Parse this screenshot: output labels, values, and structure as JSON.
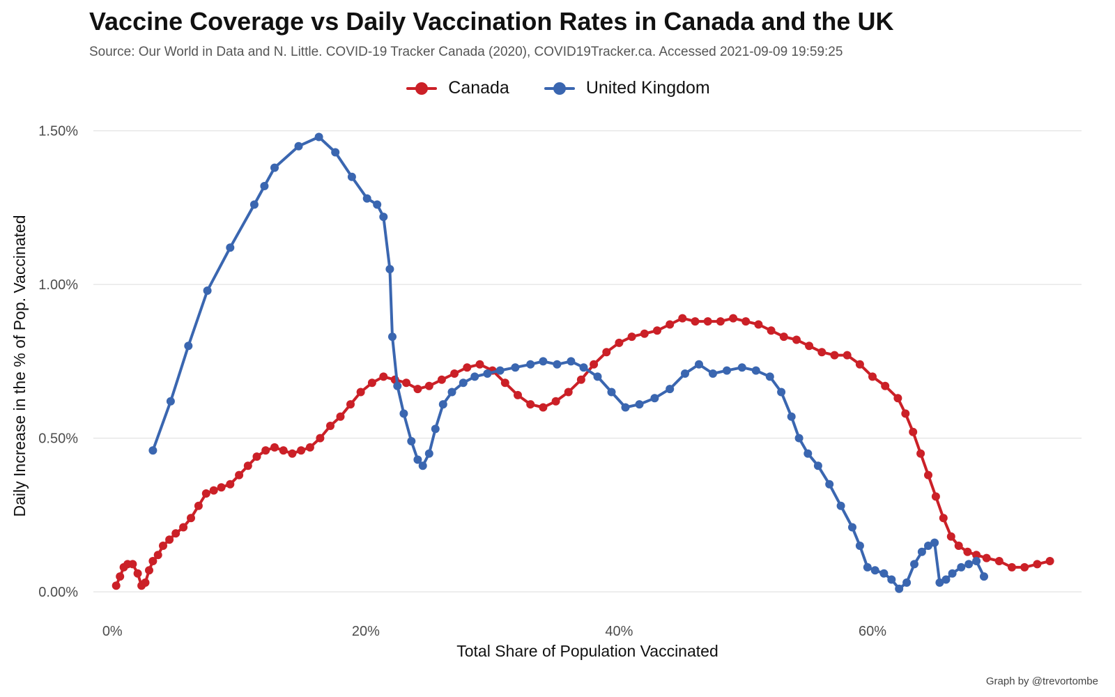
{
  "chart_data": {
    "type": "line",
    "title": "Vaccine Coverage vs Daily Vaccination Rates in Canada and the UK",
    "subtitle": "Source: Our World in Data and N. Little. COVID-19 Tracker Canada (2020), COVID19Tracker.ca. Accessed 2021-09-09 19:59:25",
    "xlabel": "Total Share of Population Vaccinated",
    "ylabel": "Daily Increase in the % of Pop. Vaccinated",
    "caption": "Graph by @trevortombe",
    "xlim": [
      -1.5,
      76.5
    ],
    "ylim": [
      -0.07,
      1.54
    ],
    "x_ticks": [
      0,
      20,
      40,
      60
    ],
    "x_tick_labels": [
      "0%",
      "20%",
      "40%",
      "60%"
    ],
    "y_ticks": [
      0,
      0.5,
      1.0,
      1.5
    ],
    "y_tick_labels": [
      "0.00%",
      "0.50%",
      "1.00%",
      "1.50%"
    ],
    "grid": "horizontal",
    "legend_position": "top-center",
    "series": [
      {
        "name": "Canada",
        "color": "#cb2027",
        "x": [
          0.3,
          0.6,
          0.9,
          1.2,
          1.6,
          2.0,
          2.3,
          2.6,
          2.9,
          3.2,
          3.6,
          4.0,
          4.5,
          5.0,
          5.6,
          6.2,
          6.8,
          7.4,
          8.0,
          8.6,
          9.3,
          10.0,
          10.7,
          11.4,
          12.1,
          12.8,
          13.5,
          14.2,
          14.9,
          15.6,
          16.4,
          17.2,
          18.0,
          18.8,
          19.6,
          20.5,
          21.4,
          22.3,
          23.2,
          24.1,
          25.0,
          26.0,
          27.0,
          28.0,
          29.0,
          30.0,
          31.0,
          32.0,
          33.0,
          34.0,
          35.0,
          36.0,
          37.0,
          38.0,
          39.0,
          40.0,
          41.0,
          42.0,
          43.0,
          44.0,
          45.0,
          46.0,
          47.0,
          48.0,
          49.0,
          50.0,
          51.0,
          52.0,
          53.0,
          54.0,
          55.0,
          56.0,
          57.0,
          58.0,
          59.0,
          60.0,
          61.0,
          62.0,
          62.6,
          63.2,
          63.8,
          64.4,
          65.0,
          65.6,
          66.2,
          66.8,
          67.5,
          68.2,
          69.0,
          70.0,
          71.0,
          72.0,
          73.0,
          74.0
        ],
        "y": [
          0.02,
          0.05,
          0.08,
          0.09,
          0.09,
          0.06,
          0.02,
          0.03,
          0.07,
          0.1,
          0.12,
          0.15,
          0.17,
          0.19,
          0.21,
          0.24,
          0.28,
          0.32,
          0.33,
          0.34,
          0.35,
          0.38,
          0.41,
          0.44,
          0.46,
          0.47,
          0.46,
          0.45,
          0.46,
          0.47,
          0.5,
          0.54,
          0.57,
          0.61,
          0.65,
          0.68,
          0.7,
          0.69,
          0.68,
          0.66,
          0.67,
          0.69,
          0.71,
          0.73,
          0.74,
          0.72,
          0.68,
          0.64,
          0.61,
          0.6,
          0.62,
          0.65,
          0.69,
          0.74,
          0.78,
          0.81,
          0.83,
          0.84,
          0.85,
          0.87,
          0.89,
          0.88,
          0.88,
          0.88,
          0.89,
          0.88,
          0.87,
          0.85,
          0.83,
          0.82,
          0.8,
          0.78,
          0.77,
          0.77,
          0.74,
          0.7,
          0.67,
          0.63,
          0.58,
          0.52,
          0.45,
          0.38,
          0.31,
          0.24,
          0.18,
          0.15,
          0.13,
          0.12,
          0.11,
          0.1,
          0.08,
          0.08,
          0.09,
          0.1
        ]
      },
      {
        "name": "United Kingdom",
        "color": "#3a66b0",
        "x": [
          3.2,
          4.6,
          6.0,
          7.5,
          9.3,
          11.2,
          12.0,
          12.8,
          14.7,
          16.3,
          17.6,
          18.9,
          20.1,
          20.9,
          21.4,
          21.9,
          22.1,
          22.5,
          23.0,
          23.6,
          24.1,
          24.5,
          25.0,
          25.5,
          26.1,
          26.8,
          27.7,
          28.6,
          29.6,
          30.6,
          31.8,
          33.0,
          34.0,
          35.1,
          36.2,
          37.2,
          38.3,
          39.4,
          40.5,
          41.6,
          42.8,
          44.0,
          45.2,
          46.3,
          47.4,
          48.5,
          49.7,
          50.8,
          51.9,
          52.8,
          53.6,
          54.2,
          54.9,
          55.7,
          56.6,
          57.5,
          58.4,
          59.0,
          59.6,
          60.2,
          60.9,
          61.5,
          62.1,
          62.7,
          63.3,
          63.9,
          64.4,
          64.9,
          65.3,
          65.8,
          66.3,
          67.0,
          67.6,
          68.2,
          68.8
        ],
        "y": [
          0.46,
          0.62,
          0.8,
          0.98,
          1.12,
          1.26,
          1.32,
          1.38,
          1.45,
          1.48,
          1.43,
          1.35,
          1.28,
          1.26,
          1.22,
          1.05,
          0.83,
          0.67,
          0.58,
          0.49,
          0.43,
          0.41,
          0.45,
          0.53,
          0.61,
          0.65,
          0.68,
          0.7,
          0.71,
          0.72,
          0.73,
          0.74,
          0.75,
          0.74,
          0.75,
          0.73,
          0.7,
          0.65,
          0.6,
          0.61,
          0.63,
          0.66,
          0.71,
          0.74,
          0.71,
          0.72,
          0.73,
          0.72,
          0.7,
          0.65,
          0.57,
          0.5,
          0.45,
          0.41,
          0.35,
          0.28,
          0.21,
          0.15,
          0.08,
          0.07,
          0.06,
          0.04,
          0.01,
          0.03,
          0.09,
          0.13,
          0.15,
          0.16,
          0.03,
          0.04,
          0.06,
          0.08,
          0.09,
          0.1,
          0.05
        ]
      }
    ]
  }
}
